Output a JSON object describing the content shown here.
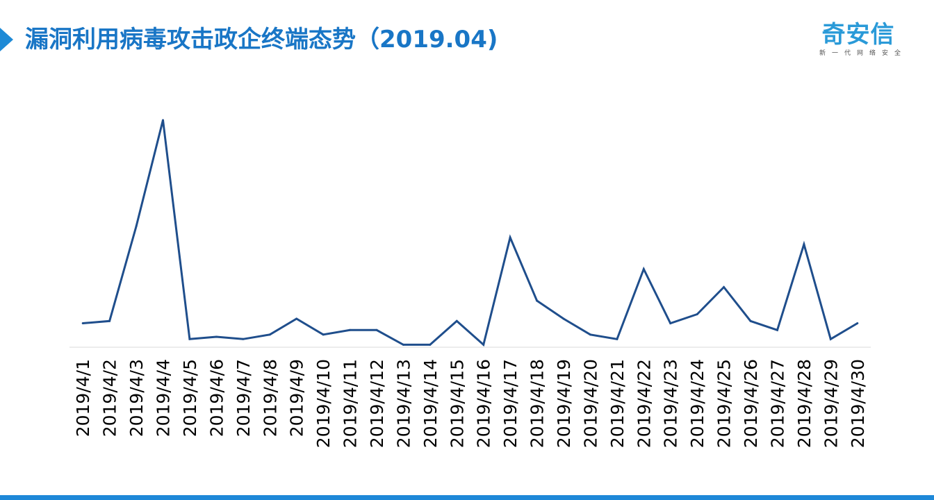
{
  "header": {
    "title": "漏洞利用病毒攻击政企终端态势（2019.04)"
  },
  "logo": {
    "name": "奇安信",
    "tagline": "新一代网络安全"
  },
  "colors": {
    "title": "#1976c6",
    "accent": "#1e8ad6",
    "series_line": "#1f4e8c",
    "bottom_bar": "#1e88d8"
  },
  "chart_data": {
    "type": "line",
    "title": "",
    "xlabel": "",
    "ylabel": "",
    "grid": false,
    "legend": "none",
    "ylim": [
      0,
      100
    ],
    "x": [
      "2019/4/1",
      "2019/4/2",
      "2019/4/3",
      "2019/4/4",
      "2019/4/5",
      "2019/4/6",
      "2019/4/7",
      "2019/4/8",
      "2019/4/9",
      "2019/4/10",
      "2019/4/11",
      "2019/4/12",
      "2019/4/13",
      "2019/4/14",
      "2019/4/15",
      "2019/4/16",
      "2019/4/17",
      "2019/4/18",
      "2019/4/19",
      "2019/4/20",
      "2019/4/21",
      "2019/4/22",
      "2019/4/23",
      "2019/4/24",
      "2019/4/25",
      "2019/4/26",
      "2019/4/27",
      "2019/4/28",
      "2019/4/29",
      "2019/4/30"
    ],
    "series": [
      {
        "values": [
          10,
          11,
          53,
          100,
          3,
          4,
          3,
          5,
          12,
          5,
          7,
          7,
          0.5,
          0.5,
          11,
          0.5,
          48,
          20,
          12,
          5,
          3,
          34,
          10,
          14,
          26,
          11,
          7,
          45,
          3,
          10
        ]
      }
    ]
  }
}
